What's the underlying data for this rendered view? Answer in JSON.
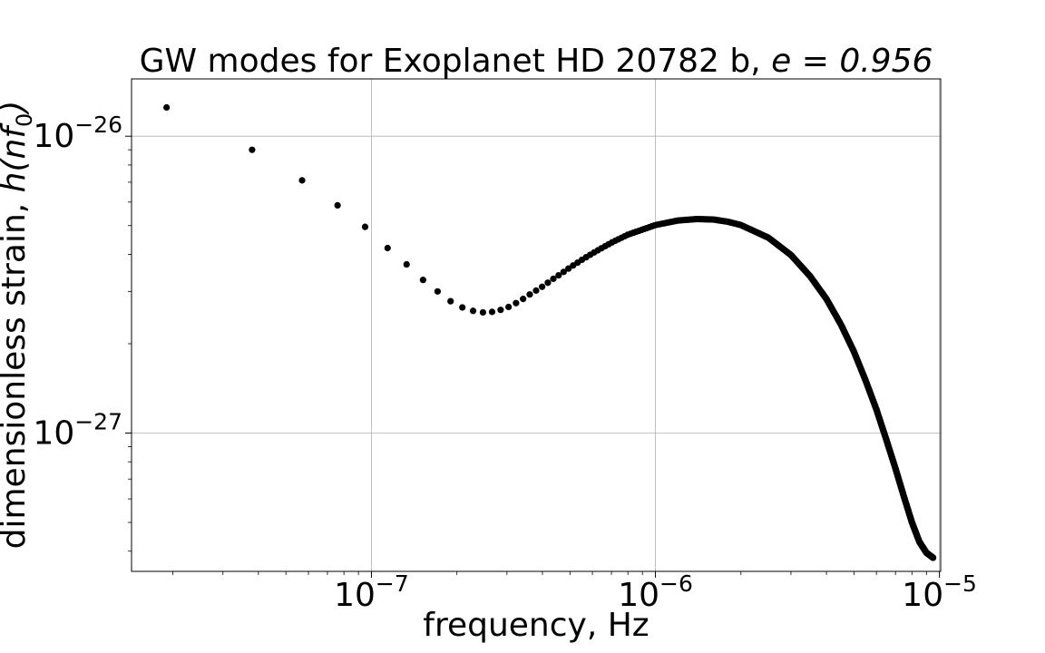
{
  "chart_data": {
    "type": "scatter",
    "title_prefix": "GW modes for Exoplanet HD 20782 b, ",
    "title_math": "e = 0.956",
    "xlabel": "frequency, Hz",
    "ylabel_prefix": "dimensionless strain, ",
    "ylabel_math": "h(nf",
    "ylabel_sub": "0",
    "ylabel_close": ")",
    "xscale": "log",
    "yscale": "log",
    "xlim": [
      1.43e-08,
      1.01e-05
    ],
    "ylim": [
      3.42e-28,
      1.56e-26
    ],
    "grid": true,
    "x_major_ticks": [
      {
        "value": 1e-07,
        "base": "10",
        "exp": "−7"
      },
      {
        "value": 1e-06,
        "base": "10",
        "exp": "−6"
      },
      {
        "value": 1e-05,
        "base": "10",
        "exp": "−5"
      }
    ],
    "y_major_ticks": [
      {
        "value": 1e-27,
        "base": "10",
        "exp": "−27"
      },
      {
        "value": 1e-26,
        "base": "10",
        "exp": "−26"
      }
    ],
    "marker_color": "#000000",
    "series": [
      {
        "fundamental_frequency": 1.9e-08,
        "harmonics": 500,
        "points": [
          [
            1.9e-08,
            1.25e-26
          ],
          [
            3.8e-08,
            9e-27
          ],
          [
            5.7e-08,
            7.1e-27
          ],
          [
            7.6e-08,
            5.85e-27
          ],
          [
            9.5e-08,
            4.95e-27
          ],
          [
            1.14e-07,
            4.2e-27
          ],
          [
            1.33e-07,
            3.7e-27
          ],
          [
            1.52e-07,
            3.28e-27
          ],
          [
            1.71e-07,
            3e-27
          ],
          [
            1.9e-07,
            2.78e-27
          ],
          [
            2.09e-07,
            2.65e-27
          ],
          [
            2.28e-07,
            2.58e-27
          ],
          [
            2.47e-07,
            2.55e-27
          ],
          [
            2.66e-07,
            2.56e-27
          ],
          [
            2.85e-07,
            2.6e-27
          ],
          [
            3.04e-07,
            2.66e-27
          ],
          [
            3.23e-07,
            2.74e-27
          ],
          [
            3.42e-07,
            2.83e-27
          ],
          [
            3.61e-07,
            2.93e-27
          ],
          [
            3.8e-07,
            3.02e-27
          ],
          [
            3.99e-07,
            3.11e-27
          ],
          [
            4.18e-07,
            3.21e-27
          ],
          [
            4.37e-07,
            3.31e-27
          ],
          [
            4.56e-07,
            3.4e-27
          ],
          [
            4.75e-07,
            3.49e-27
          ],
          [
            5e-07,
            3.61e-27
          ],
          [
            5.5e-07,
            3.83e-27
          ],
          [
            6e-07,
            4.03e-27
          ],
          [
            7e-07,
            4.38e-27
          ],
          [
            8e-07,
            4.66e-27
          ],
          [
            1e-06,
            5.02e-27
          ],
          [
            1.2e-06,
            5.2e-27
          ],
          [
            1.4e-06,
            5.26e-27
          ],
          [
            1.6e-06,
            5.24e-27
          ],
          [
            1.8e-06,
            5.15e-27
          ],
          [
            2e-06,
            5.02e-27
          ],
          [
            2.5e-06,
            4.55e-27
          ],
          [
            3e-06,
            3.98e-27
          ],
          [
            3.5e-06,
            3.38e-27
          ],
          [
            4e-06,
            2.83e-27
          ],
          [
            4.5e-06,
            2.32e-27
          ],
          [
            5e-06,
            1.88e-27
          ],
          [
            5.5e-06,
            1.5e-27
          ],
          [
            6e-06,
            1.2e-27
          ],
          [
            6.5e-06,
            9.5e-28
          ],
          [
            7e-06,
            7.6e-28
          ],
          [
            7.5e-06,
            6.1e-28
          ],
          [
            8e-06,
            5e-28
          ],
          [
            8.5e-06,
            4.3e-28
          ],
          [
            9e-06,
            3.95e-28
          ],
          [
            9.5e-06,
            3.8e-28
          ]
        ]
      }
    ]
  }
}
